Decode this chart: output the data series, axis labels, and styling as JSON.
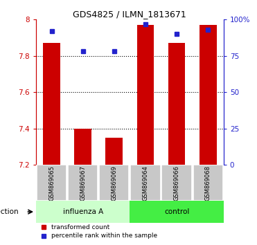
{
  "title": "GDS4825 / ILMN_1813671",
  "samples": [
    "GSM869065",
    "GSM869067",
    "GSM869069",
    "GSM869064",
    "GSM869066",
    "GSM869068"
  ],
  "red_values": [
    7.87,
    7.4,
    7.35,
    7.97,
    7.87,
    7.97
  ],
  "blue_values": [
    92,
    78,
    78,
    97,
    90,
    93
  ],
  "ymin": 7.2,
  "ymax": 8.0,
  "ytick_labels": [
    "7.2",
    "7.4",
    "7.6",
    "7.8",
    "8"
  ],
  "ytick_vals": [
    7.2,
    7.4,
    7.6,
    7.8,
    8.0
  ],
  "y2tick_labels": [
    "0",
    "25",
    "50",
    "75",
    "100%"
  ],
  "y2tick_vals": [
    0,
    25,
    50,
    75,
    100
  ],
  "y2min": 0,
  "y2max": 100,
  "bar_bottom": 7.2,
  "bar_color": "#cc0000",
  "marker_color": "#2222cc",
  "group_influenza_color": "#ccffcc",
  "group_control_color": "#44ee44",
  "label_bg": "#c8c8c8",
  "legend_red": "transformed count",
  "legend_blue": "percentile rank within the sample",
  "infection_label": "infection",
  "grid_vals": [
    7.4,
    7.6,
    7.8
  ],
  "bar_width": 0.55
}
